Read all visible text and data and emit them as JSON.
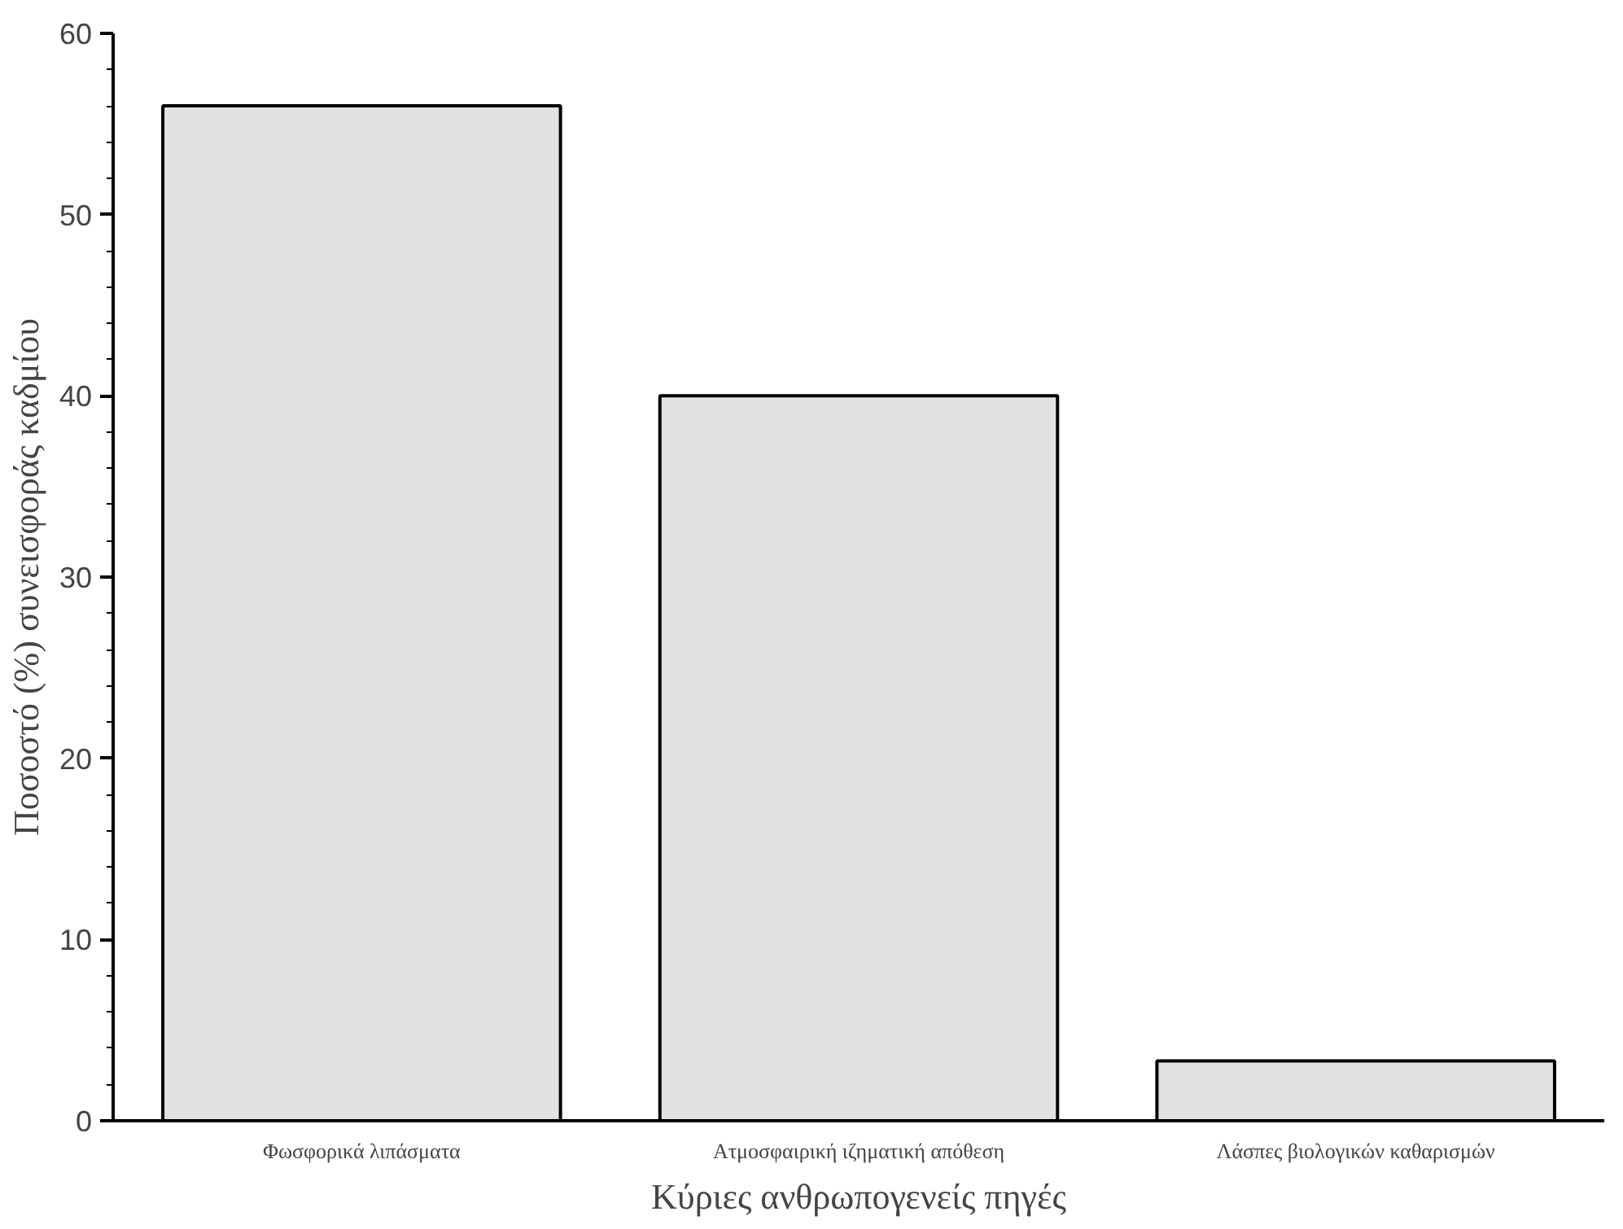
{
  "chart_data": {
    "type": "bar",
    "categories": [
      "Φωσφορικά λιπάσματα",
      "Ατμοσφαιρική ιζηματική απόθεση",
      "Λάσπες βιολογικών καθαρισμών"
    ],
    "values": [
      56,
      40,
      3.3
    ],
    "color": "#e2e2e2",
    "xlabel": "Κύριες ανθρωπογενείς πηγές",
    "ylabel": "Ποσοστό (%) συνεισφοράς καδμίου",
    "ylim": [
      0,
      60
    ],
    "yticks": [
      0,
      10,
      20,
      30,
      40,
      50,
      60
    ],
    "grid": false
  }
}
